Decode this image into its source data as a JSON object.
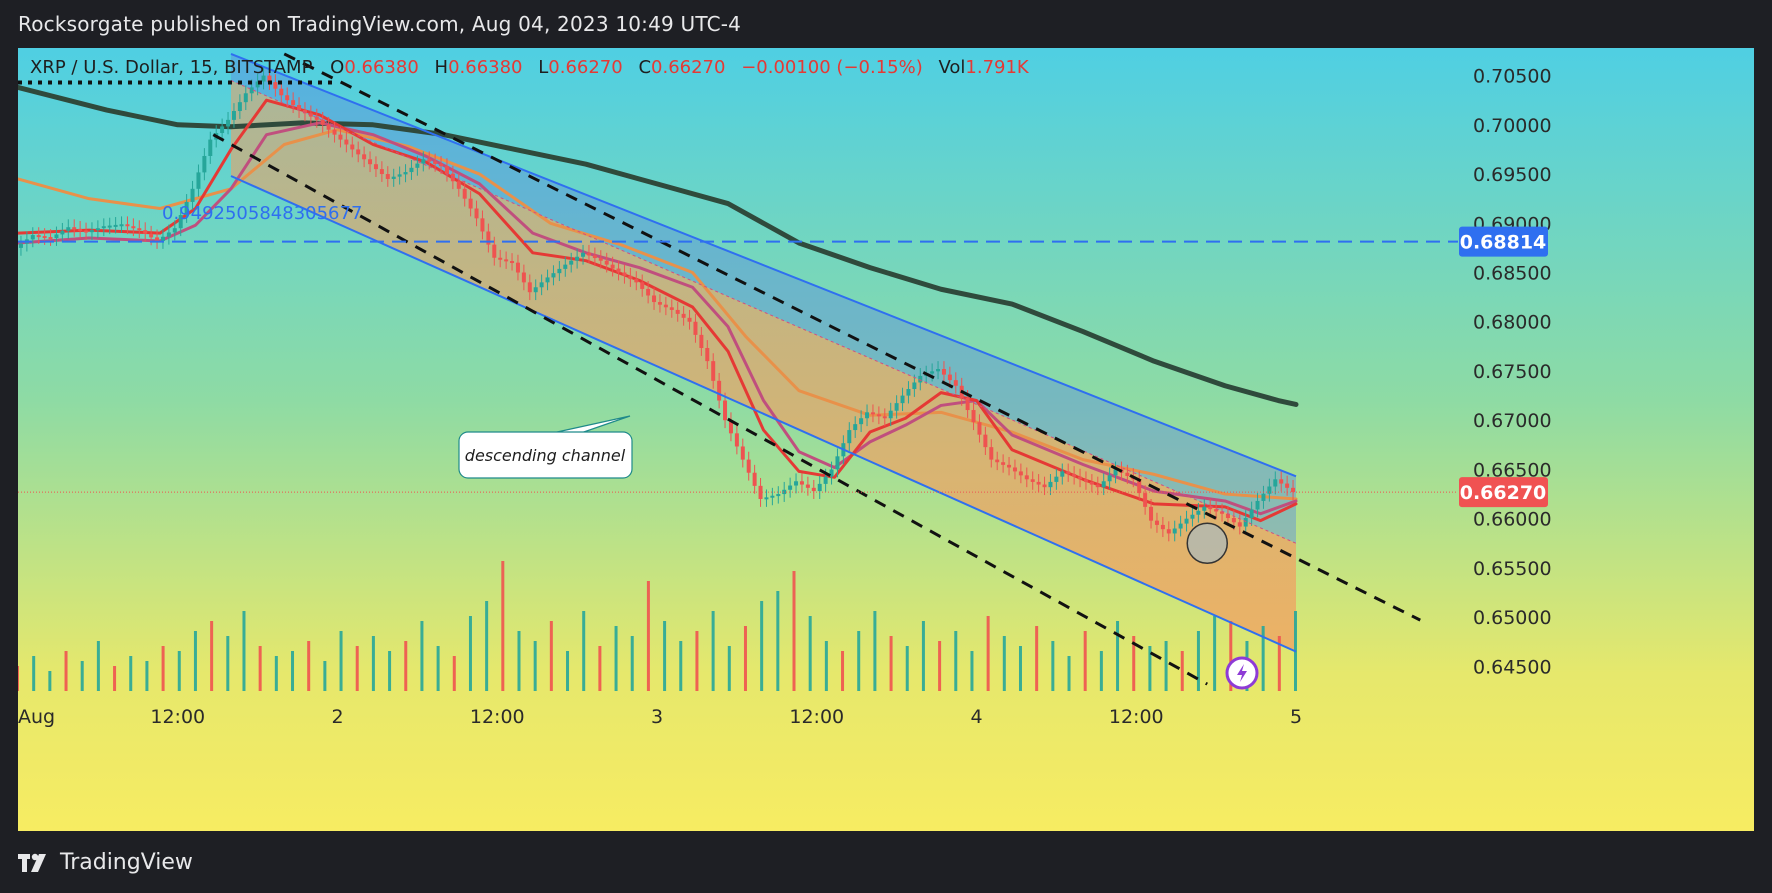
{
  "publisher_line": "Rocksorgate published on TradingView.com, Aug 04, 2023 10:49 UTC-4",
  "brand": "TradingView",
  "chart_data": {
    "type": "candlestick",
    "symbol": "XRP / U.S. Dollar, 15, BITSTAMP",
    "ohlc_labels": {
      "o_label": "O",
      "o_value": "0.66380",
      "h_label": "H",
      "h_value": "0.66380",
      "l_label": "L",
      "l_value": "0.66270",
      "c_label": "C",
      "c_value": "0.66270",
      "change": "−0.00100 (−0.15%)",
      "vol_label": "Vol",
      "vol_value": "1.791K"
    },
    "y_ticks": [
      "0.70500",
      "0.70000",
      "0.69500",
      "0.69000",
      "0.68500",
      "0.68000",
      "0.67500",
      "0.67000",
      "0.66500",
      "0.66000",
      "0.65500",
      "0.65000",
      "0.64500"
    ],
    "y_tick_values": [
      0.705,
      0.7,
      0.695,
      0.69,
      0.685,
      0.68,
      0.675,
      0.67,
      0.665,
      0.66,
      0.655,
      0.65,
      0.645
    ],
    "ylim": [
      0.6425,
      0.7078
    ],
    "x_ticks": [
      "Aug",
      "12:00",
      "2",
      "12:00",
      "3",
      "12:00",
      "4",
      "12:00",
      "5"
    ],
    "xlim": [
      0,
      80
    ],
    "x_tick_positions": [
      0,
      9,
      18,
      27,
      36,
      45,
      54,
      63,
      72
    ],
    "horizontal_level": {
      "value": 0.68814,
      "label": "0.68814",
      "color": "#2f6ff0"
    },
    "last_price": {
      "value": 0.6627,
      "label": "0.66270",
      "color": "#f05252"
    },
    "channel_annotation": "descending channel",
    "fib_label": "0.9492505848305677",
    "price_path": [
      {
        "x": 0,
        "y": 0.6875
      },
      {
        "x": 1,
        "y": 0.6888
      },
      {
        "x": 2,
        "y": 0.6885
      },
      {
        "x": 3,
        "y": 0.6896
      },
      {
        "x": 4,
        "y": 0.6891
      },
      {
        "x": 5,
        "y": 0.6897
      },
      {
        "x": 6,
        "y": 0.6899
      },
      {
        "x": 7,
        "y": 0.6893
      },
      {
        "x": 8,
        "y": 0.6882
      },
      {
        "x": 9,
        "y": 0.6895
      },
      {
        "x": 10,
        "y": 0.6935
      },
      {
        "x": 11,
        "y": 0.6985
      },
      {
        "x": 12,
        "y": 0.7005
      },
      {
        "x": 13,
        "y": 0.7032
      },
      {
        "x": 14,
        "y": 0.705
      },
      {
        "x": 15,
        "y": 0.703
      },
      {
        "x": 16,
        "y": 0.7015
      },
      {
        "x": 17,
        "y": 0.7005
      },
      {
        "x": 18,
        "y": 0.699
      },
      {
        "x": 19,
        "y": 0.6975
      },
      {
        "x": 20,
        "y": 0.696
      },
      {
        "x": 21,
        "y": 0.6945
      },
      {
        "x": 22,
        "y": 0.6952
      },
      {
        "x": 23,
        "y": 0.6965
      },
      {
        "x": 24,
        "y": 0.6958
      },
      {
        "x": 25,
        "y": 0.6935
      },
      {
        "x": 26,
        "y": 0.6905
      },
      {
        "x": 27,
        "y": 0.6865
      },
      {
        "x": 28,
        "y": 0.686
      },
      {
        "x": 29,
        "y": 0.683
      },
      {
        "x": 30,
        "y": 0.6845
      },
      {
        "x": 31,
        "y": 0.6858
      },
      {
        "x": 32,
        "y": 0.687
      },
      {
        "x": 33,
        "y": 0.6862
      },
      {
        "x": 34,
        "y": 0.685
      },
      {
        "x": 35,
        "y": 0.684
      },
      {
        "x": 36,
        "y": 0.682
      },
      {
        "x": 37,
        "y": 0.6812
      },
      {
        "x": 38,
        "y": 0.68
      },
      {
        "x": 39,
        "y": 0.676
      },
      {
        "x": 40,
        "y": 0.67
      },
      {
        "x": 41,
        "y": 0.666
      },
      {
        "x": 42,
        "y": 0.662
      },
      {
        "x": 43,
        "y": 0.6625
      },
      {
        "x": 44,
        "y": 0.6638
      },
      {
        "x": 45,
        "y": 0.6628
      },
      {
        "x": 46,
        "y": 0.665
      },
      {
        "x": 47,
        "y": 0.669
      },
      {
        "x": 48,
        "y": 0.6708
      },
      {
        "x": 49,
        "y": 0.6702
      },
      {
        "x": 50,
        "y": 0.6725
      },
      {
        "x": 51,
        "y": 0.6745
      },
      {
        "x": 52,
        "y": 0.6752
      },
      {
        "x": 53,
        "y": 0.6735
      },
      {
        "x": 54,
        "y": 0.6698
      },
      {
        "x": 55,
        "y": 0.666
      },
      {
        "x": 56,
        "y": 0.6652
      },
      {
        "x": 57,
        "y": 0.664
      },
      {
        "x": 58,
        "y": 0.6632
      },
      {
        "x": 59,
        "y": 0.6648
      },
      {
        "x": 60,
        "y": 0.664
      },
      {
        "x": 61,
        "y": 0.6632
      },
      {
        "x": 62,
        "y": 0.665
      },
      {
        "x": 63,
        "y": 0.664
      },
      {
        "x": 64,
        "y": 0.6598
      },
      {
        "x": 65,
        "y": 0.6585
      },
      {
        "x": 66,
        "y": 0.66
      },
      {
        "x": 67,
        "y": 0.6612
      },
      {
        "x": 68,
        "y": 0.6605
      },
      {
        "x": 69,
        "y": 0.6592
      },
      {
        "x": 70,
        "y": 0.6618
      },
      {
        "x": 71,
        "y": 0.664
      },
      {
        "x": 72,
        "y": 0.6627
      }
    ],
    "ma_slow_path": [
      {
        "x": 0,
        "y": 0.7038
      },
      {
        "x": 5,
        "y": 0.7015
      },
      {
        "x": 9,
        "y": 0.7
      },
      {
        "x": 12,
        "y": 0.6998
      },
      {
        "x": 16,
        "y": 0.7002
      },
      {
        "x": 20,
        "y": 0.7
      },
      {
        "x": 24,
        "y": 0.699
      },
      {
        "x": 28,
        "y": 0.6975
      },
      {
        "x": 32,
        "y": 0.696
      },
      {
        "x": 36,
        "y": 0.694
      },
      {
        "x": 40,
        "y": 0.692
      },
      {
        "x": 44,
        "y": 0.688
      },
      {
        "x": 48,
        "y": 0.6855
      },
      {
        "x": 52,
        "y": 0.6833
      },
      {
        "x": 56,
        "y": 0.6818
      },
      {
        "x": 60,
        "y": 0.679
      },
      {
        "x": 64,
        "y": 0.676
      },
      {
        "x": 68,
        "y": 0.6735
      },
      {
        "x": 71,
        "y": 0.672
      },
      {
        "x": 72,
        "y": 0.6716
      }
    ],
    "ma_mid_path": [
      {
        "x": 0,
        "y": 0.6945
      },
      {
        "x": 4,
        "y": 0.6925
      },
      {
        "x": 8,
        "y": 0.6915
      },
      {
        "x": 12,
        "y": 0.6935
      },
      {
        "x": 15,
        "y": 0.698
      },
      {
        "x": 18,
        "y": 0.6995
      },
      {
        "x": 22,
        "y": 0.6978
      },
      {
        "x": 26,
        "y": 0.695
      },
      {
        "x": 30,
        "y": 0.69
      },
      {
        "x": 34,
        "y": 0.6878
      },
      {
        "x": 38,
        "y": 0.685
      },
      {
        "x": 41,
        "y": 0.6785
      },
      {
        "x": 44,
        "y": 0.673
      },
      {
        "x": 48,
        "y": 0.6705
      },
      {
        "x": 52,
        "y": 0.6708
      },
      {
        "x": 56,
        "y": 0.6688
      },
      {
        "x": 60,
        "y": 0.666
      },
      {
        "x": 64,
        "y": 0.6645
      },
      {
        "x": 68,
        "y": 0.6625
      },
      {
        "x": 72,
        "y": 0.662
      }
    ],
    "ma_fast_path": [
      {
        "x": 0,
        "y": 0.689
      },
      {
        "x": 4,
        "y": 0.6893
      },
      {
        "x": 8,
        "y": 0.689
      },
      {
        "x": 10,
        "y": 0.6915
      },
      {
        "x": 12,
        "y": 0.6975
      },
      {
        "x": 14,
        "y": 0.7025
      },
      {
        "x": 17,
        "y": 0.701
      },
      {
        "x": 20,
        "y": 0.698
      },
      {
        "x": 23,
        "y": 0.6962
      },
      {
        "x": 26,
        "y": 0.693
      },
      {
        "x": 29,
        "y": 0.687
      },
      {
        "x": 32,
        "y": 0.6862
      },
      {
        "x": 35,
        "y": 0.6842
      },
      {
        "x": 38,
        "y": 0.6815
      },
      {
        "x": 40,
        "y": 0.677
      },
      {
        "x": 42,
        "y": 0.669
      },
      {
        "x": 44,
        "y": 0.6648
      },
      {
        "x": 46,
        "y": 0.6642
      },
      {
        "x": 48,
        "y": 0.6688
      },
      {
        "x": 50,
        "y": 0.6702
      },
      {
        "x": 52,
        "y": 0.6728
      },
      {
        "x": 54,
        "y": 0.672
      },
      {
        "x": 56,
        "y": 0.667
      },
      {
        "x": 60,
        "y": 0.664
      },
      {
        "x": 64,
        "y": 0.6615
      },
      {
        "x": 68,
        "y": 0.6612
      },
      {
        "x": 70,
        "y": 0.6598
      },
      {
        "x": 72,
        "y": 0.6615
      }
    ],
    "ma_fast2_path": [
      {
        "x": 0,
        "y": 0.688
      },
      {
        "x": 4,
        "y": 0.6885
      },
      {
        "x": 8,
        "y": 0.6882
      },
      {
        "x": 10,
        "y": 0.6898
      },
      {
        "x": 12,
        "y": 0.6935
      },
      {
        "x": 14,
        "y": 0.699
      },
      {
        "x": 17,
        "y": 0.7002
      },
      {
        "x": 20,
        "y": 0.699
      },
      {
        "x": 23,
        "y": 0.6968
      },
      {
        "x": 26,
        "y": 0.694
      },
      {
        "x": 29,
        "y": 0.689
      },
      {
        "x": 32,
        "y": 0.687
      },
      {
        "x": 35,
        "y": 0.6855
      },
      {
        "x": 38,
        "y": 0.6835
      },
      {
        "x": 40,
        "y": 0.6795
      },
      {
        "x": 42,
        "y": 0.672
      },
      {
        "x": 44,
        "y": 0.6668
      },
      {
        "x": 46,
        "y": 0.6652
      },
      {
        "x": 48,
        "y": 0.6678
      },
      {
        "x": 50,
        "y": 0.6695
      },
      {
        "x": 52,
        "y": 0.6715
      },
      {
        "x": 54,
        "y": 0.672
      },
      {
        "x": 56,
        "y": 0.6685
      },
      {
        "x": 60,
        "y": 0.6655
      },
      {
        "x": 64,
        "y": 0.6628
      },
      {
        "x": 68,
        "y": 0.6618
      },
      {
        "x": 70,
        "y": 0.6605
      },
      {
        "x": 72,
        "y": 0.6618
      }
    ],
    "channel": {
      "upper": [
        {
          "x": 12,
          "y": 0.7072
        },
        {
          "x": 72,
          "y": 0.6643
        }
      ],
      "lower": [
        {
          "x": 12,
          "y": 0.6948
        },
        {
          "x": 72,
          "y": 0.6465
        }
      ],
      "mid_dashed": [
        {
          "x": 15,
          "y": 0.7072
        },
        {
          "x": 79,
          "y": 0.6497
        }
      ],
      "lower_dashed": [
        {
          "x": 11,
          "y": 0.699
        },
        {
          "x": 67,
          "y": 0.6432
        }
      ],
      "inner_dotted": [
        {
          "x": 12,
          "y": 0.7045
        },
        {
          "x": 72,
          "y": 0.6575
        }
      ]
    },
    "dotted_high_level": {
      "y": 0.7043,
      "x_start": 0,
      "x_end": 18
    },
    "volume": [
      5,
      7,
      4,
      8,
      6,
      10,
      5,
      7,
      6,
      9,
      8,
      12,
      14,
      11,
      16,
      9,
      7,
      8,
      10,
      6,
      12,
      9,
      11,
      8,
      10,
      14,
      9,
      7,
      15,
      18,
      26,
      12,
      10,
      14,
      8,
      16,
      9,
      13,
      11,
      22,
      14,
      10,
      12,
      16,
      9,
      13,
      18,
      20,
      24,
      15,
      10,
      8,
      12,
      16,
      11,
      9,
      14,
      10,
      12,
      8,
      15,
      11,
      9,
      13,
      10,
      7,
      12,
      8,
      14,
      11,
      9,
      10,
      8,
      12,
      15,
      14,
      10,
      13,
      11,
      16
    ],
    "volume_up_color": "#26a69a",
    "volume_down_color": "#ef5350"
  }
}
